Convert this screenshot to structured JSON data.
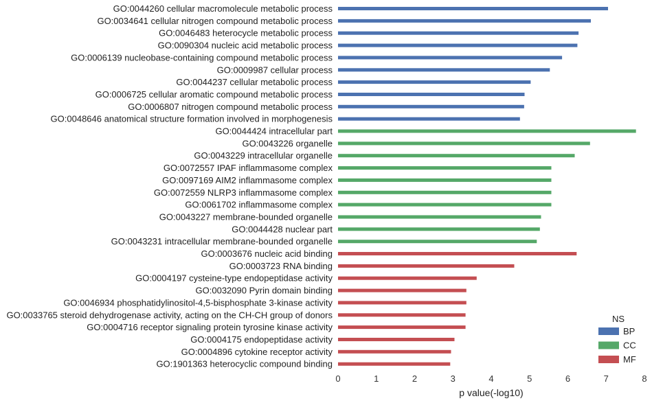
{
  "chart_data": {
    "type": "bar",
    "orientation": "horizontal",
    "categories": [
      "GO:0044260 cellular macromolecule metabolic process",
      "GO:0034641 cellular nitrogen compound metabolic process",
      "GO:0046483 heterocycle metabolic process",
      "GO:0090304 nucleic acid metabolic process",
      "GO:0006139 nucleobase-containing compound metabolic process",
      "GO:0009987 cellular process",
      "GO:0044237 cellular metabolic process",
      "GO:0006725 cellular aromatic compound metabolic process",
      "GO:0006807 nitrogen compound metabolic process",
      "GO:0048646 anatomical structure formation involved in morphogenesis",
      "GO:0044424 intracellular part",
      "GO:0043226 organelle",
      "GO:0043229 intracellular organelle",
      "GO:0072557 IPAF inflammasome complex",
      "GO:0097169 AIM2 inflammasome complex",
      "GO:0072559 NLRP3 inflammasome complex",
      "GO:0061702 inflammasome complex",
      "GO:0043227 membrane-bounded organelle",
      "GO:0044428 nuclear part",
      "GO:0043231 intracellular membrane-bounded organelle",
      "GO:0003676 nucleic acid binding",
      "GO:0003723 RNA binding",
      "GO:0004197 cysteine-type endopeptidase activity",
      "GO:0032090 Pyrin domain binding",
      "GO:0046934 phosphatidylinositol-4,5-bisphosphate 3-kinase activity",
      "GO:0033765 steroid dehydrogenase activity, acting on the CH-CH group of donors",
      "GO:0004716 receptor signaling protein tyrosine kinase activity",
      "GO:0004175 endopeptidase activity",
      "GO:0004896 cytokine receptor activity",
      "GO:1901363 heterocyclic compound binding"
    ],
    "values": [
      7.05,
      6.6,
      6.28,
      6.25,
      5.85,
      5.53,
      5.03,
      4.87,
      4.86,
      4.75,
      7.78,
      6.58,
      6.18,
      5.57,
      5.57,
      5.57,
      5.57,
      5.3,
      5.27,
      5.19,
      6.23,
      4.6,
      3.62,
      3.35,
      3.35,
      3.33,
      3.33,
      3.04,
      2.95,
      2.93
    ],
    "groups": [
      "BP",
      "BP",
      "BP",
      "BP",
      "BP",
      "BP",
      "BP",
      "BP",
      "BP",
      "BP",
      "CC",
      "CC",
      "CC",
      "CC",
      "CC",
      "CC",
      "CC",
      "CC",
      "CC",
      "CC",
      "MF",
      "MF",
      "MF",
      "MF",
      "MF",
      "MF",
      "MF",
      "MF",
      "MF",
      "MF"
    ],
    "series": [
      {
        "name": "BP",
        "color": "#4c72b0"
      },
      {
        "name": "CC",
        "color": "#55a868"
      },
      {
        "name": "MF",
        "color": "#c44e52"
      }
    ],
    "title": "",
    "xlabel": "p value(-log10)",
    "ylabel": "",
    "xlim": [
      0,
      8
    ],
    "xticks": [
      "0",
      "1",
      "2",
      "3",
      "4",
      "5",
      "6",
      "7",
      "8"
    ],
    "legend": {
      "title": "NS",
      "placement": "bottom-right"
    },
    "grid": false
  }
}
